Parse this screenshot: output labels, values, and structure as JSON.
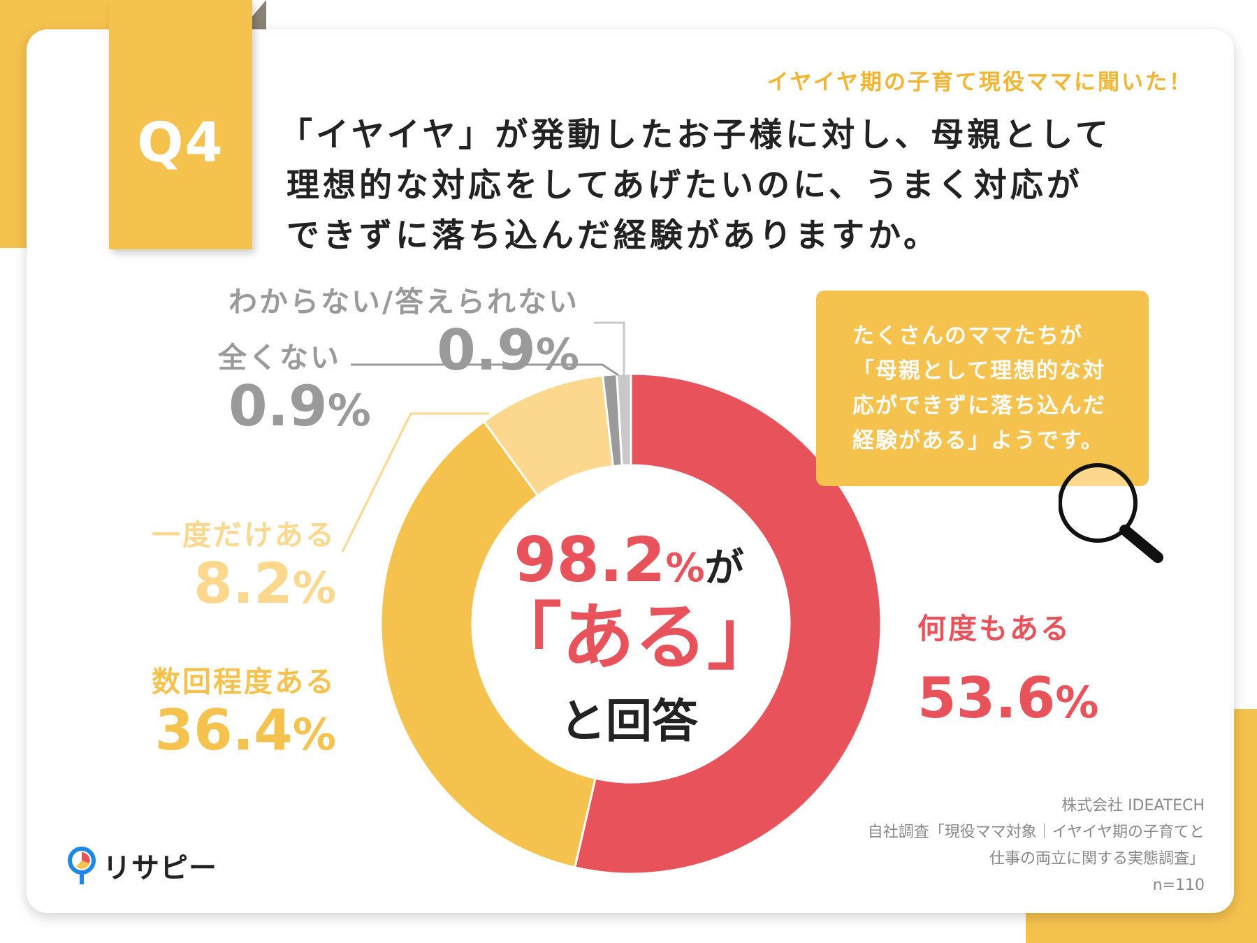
{
  "header": {
    "q_label": "Q4",
    "subtitle": "イヤイヤ期の子育て現役ママに聞いた！",
    "question_lines": [
      "「イヤイヤ」が発動したお子様に対し、母親として",
      "理想的な対応をしてあげたいのに、うまく対応が",
      "できずに落ち込んだ経験がありますか。"
    ]
  },
  "chart_data": {
    "type": "pie",
    "categories": [
      "何度もある",
      "数回程度ある",
      "一度だけある",
      "全くない",
      "わからない/答えられない"
    ],
    "values": [
      53.6,
      36.4,
      8.2,
      0.9,
      0.9
    ],
    "colors": [
      "#e8525a",
      "#f6c24e",
      "#fbd88d",
      "#9a9a9a",
      "#c8c8c8"
    ],
    "value_labels": [
      "53.6",
      "36.4",
      "8.2",
      "0.9",
      "0.9"
    ],
    "unit": "%",
    "donut": true
  },
  "center": {
    "value": "98.2",
    "unit": "%",
    "particle": "が",
    "highlight": "「ある」",
    "bottom": "と回答"
  },
  "callout": {
    "lines": [
      "たくさんのママたちが",
      "「母親として理想的な対",
      "応ができずに落ち込んだ",
      "経験がある」ようです。"
    ],
    "icon": "magnifier-icon"
  },
  "source": {
    "lines": [
      "株式会社 IDEATECH",
      "自社調査「現役ママ対象｜イヤイヤ期の子育てと",
      "仕事の両立に関する実態調査」",
      "n=110"
    ]
  },
  "logo": {
    "text": "リサピー",
    "icon": "pin-pie-icon"
  }
}
